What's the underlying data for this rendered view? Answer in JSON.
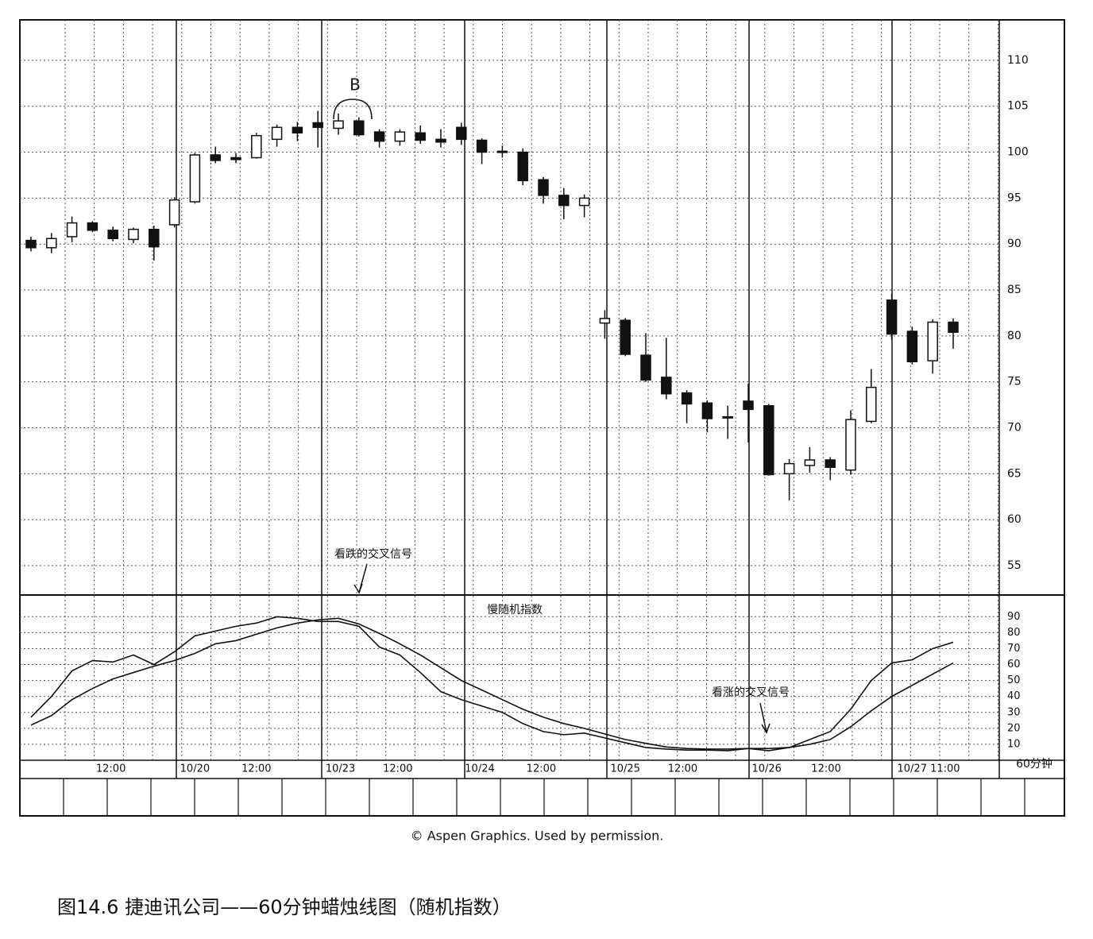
{
  "chart_data": [
    {
      "type": "candlestick",
      "annotation": "B",
      "label_left": "看跌的交叉信号",
      "categories": [
        null,
        null,
        null,
        null,
        null,
        null,
        null,
        null,
        null,
        null,
        null,
        null,
        null,
        null,
        null,
        null,
        null,
        null,
        null,
        null,
        null,
        null,
        null,
        null,
        null,
        null,
        null,
        null,
        null,
        null,
        null,
        null,
        null,
        null,
        null,
        null,
        null,
        null,
        null,
        null,
        null,
        null,
        null,
        null,
        null,
        null
      ],
      "open": [
        90.4,
        89.6,
        90.8,
        92.3,
        91.5,
        90.5,
        91.6,
        92.1,
        94.6,
        99.7,
        99.4,
        99.4,
        101.4,
        102.7,
        103.2,
        102.6,
        103.4,
        102.2,
        101.2,
        102.1,
        101.4,
        102.7,
        101.3,
        100.1,
        100.0,
        97.0,
        95.3,
        94.2,
        81.4,
        81.7,
        77.9,
        75.5,
        73.8,
        72.7,
        71.2,
        72.9,
        72.4,
        65.0,
        65.9,
        66.5,
        65.4,
        70.7,
        83.9,
        80.5,
        77.3,
        81.5
      ],
      "high": [
        90.8,
        91.2,
        93.0,
        92.5,
        91.9,
        91.8,
        92.0,
        95.1,
        99.9,
        100.6,
        99.9,
        102.1,
        103.0,
        103.3,
        104.5,
        104.2,
        103.8,
        102.5,
        102.5,
        102.9,
        102.5,
        103.2,
        101.5,
        100.7,
        100.4,
        97.3,
        96.1,
        95.4,
        82.8,
        81.95,
        80.3,
        79.8,
        74.1,
        73.0,
        72.4,
        74.8,
        72.6,
        66.6,
        67.9,
        66.8,
        71.9,
        76.4,
        84.6,
        81.0,
        81.8,
        81.9
      ],
      "low": [
        89.2,
        89.0,
        90.2,
        91.3,
        90.3,
        90.1,
        88.2,
        91.8,
        94.4,
        98.8,
        98.8,
        99.3,
        100.6,
        101.2,
        100.5,
        101.9,
        101.7,
        100.5,
        100.7,
        100.9,
        100.5,
        100.8,
        98.7,
        99.4,
        96.4,
        94.4,
        92.7,
        92.9,
        79.7,
        77.8,
        75.0,
        73.1,
        70.5,
        69.5,
        68.8,
        68.4,
        64.8,
        62.1,
        65.1,
        64.3,
        64.9,
        70.5,
        79.6,
        76.9,
        75.9,
        78.6
      ],
      "close": [
        89.6,
        90.6,
        92.3,
        91.5,
        90.6,
        91.6,
        89.7,
        94.8,
        99.7,
        99.1,
        99.2,
        101.8,
        102.7,
        102.1,
        102.7,
        103.4,
        101.9,
        101.2,
        102.2,
        101.3,
        101.1,
        101.4,
        100.0,
        100.0,
        96.9,
        95.3,
        94.2,
        95.0,
        81.9,
        78.0,
        75.2,
        73.7,
        72.6,
        71.0,
        71.1,
        72.0,
        64.9,
        66.1,
        66.5,
        65.7,
        70.9,
        74.4,
        80.2,
        77.2,
        81.5,
        80.4
      ],
      "ylim": [
        51.8,
        114.4
      ],
      "yticks": [
        55,
        60,
        65,
        70,
        75,
        80,
        85,
        90,
        95,
        100,
        105,
        110
      ],
      "grid": true
    },
    {
      "type": "line",
      "title": "慢随机指数",
      "label_right": "看涨的交叉信号",
      "x_unit": "60分钟",
      "xticks": [
        {
          "value": 3.9,
          "label": "12:00"
        },
        {
          "value": 8.0,
          "label": "10/20"
        },
        {
          "value": 11.0,
          "label": "12:00"
        },
        {
          "value": 15.1,
          "label": "10/23"
        },
        {
          "value": 17.9,
          "label": "12:00"
        },
        {
          "value": 21.9,
          "label": "10/24"
        },
        {
          "value": 24.9,
          "label": "12:00"
        },
        {
          "value": 29.0,
          "label": "10/25"
        },
        {
          "value": 31.8,
          "label": "12:00"
        },
        {
          "value": 35.9,
          "label": "10/26"
        },
        {
          "value": 38.8,
          "label": "12:00"
        },
        {
          "value": 43.8,
          "label": "10/27 11:00"
        }
      ],
      "series": [
        {
          "color": "#111111",
          "values": [
            27,
            40,
            56,
            62.5,
            61.6,
            66,
            60,
            68,
            78,
            81,
            84,
            86,
            90,
            89,
            87,
            87,
            84,
            71,
            66,
            55,
            43,
            38,
            34,
            30,
            23,
            18,
            16,
            17,
            14,
            11,
            8,
            7,
            6.4,
            6.4,
            6,
            7.4,
            6,
            8,
            13,
            18,
            32,
            50,
            61,
            63,
            70,
            74
          ]
        },
        {
          "color": "#111111",
          "values": [
            22,
            28,
            38,
            45,
            51,
            55,
            59,
            62.5,
            67,
            73,
            75,
            79,
            83,
            86,
            88,
            89,
            85.5,
            79.5,
            73,
            66,
            58,
            50,
            44,
            38,
            32,
            27,
            23,
            20,
            16.5,
            13,
            10.6,
            8.3,
            7.4,
            7,
            7,
            7.4,
            7.4,
            8,
            10,
            13,
            21,
            31,
            40,
            47,
            54,
            61
          ]
        }
      ],
      "ylim": [
        0,
        103.6
      ],
      "yticks": [
        10,
        20,
        30,
        40,
        50,
        60,
        70,
        80,
        90
      ],
      "grid": true
    }
  ],
  "credit": "© Aspen Graphics. Used by permission.",
  "caption": "图14.6 捷迪讯公司——60分钟蜡烛线图（随机指数）"
}
